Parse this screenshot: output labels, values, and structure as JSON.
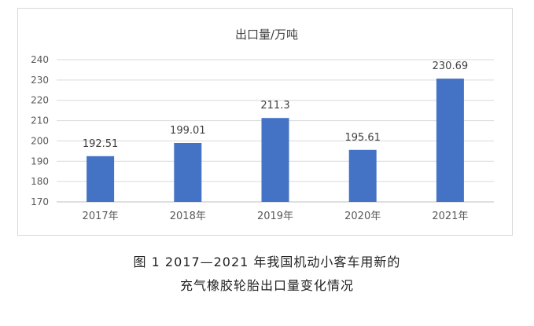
{
  "chart_data": {
    "type": "bar",
    "title": "出口量/万吨",
    "categories": [
      "2017年",
      "2018年",
      "2019年",
      "2020年",
      "2021年"
    ],
    "values": [
      192.51,
      199.01,
      211.3,
      195.61,
      230.69
    ],
    "value_labels": [
      "192.51",
      "199.01",
      "211.3",
      "195.61",
      "230.69"
    ],
    "ylim": [
      170,
      240
    ],
    "yticks": [
      "170",
      "180",
      "190",
      "200",
      "210",
      "220",
      "230",
      "240"
    ],
    "grid": true,
    "bar_color": "#4472c4"
  },
  "caption": {
    "line1": "图 1  2017—2021 年我国机动小客车用新的",
    "line2": "充气橡胶轮胎出口量变化情况"
  }
}
